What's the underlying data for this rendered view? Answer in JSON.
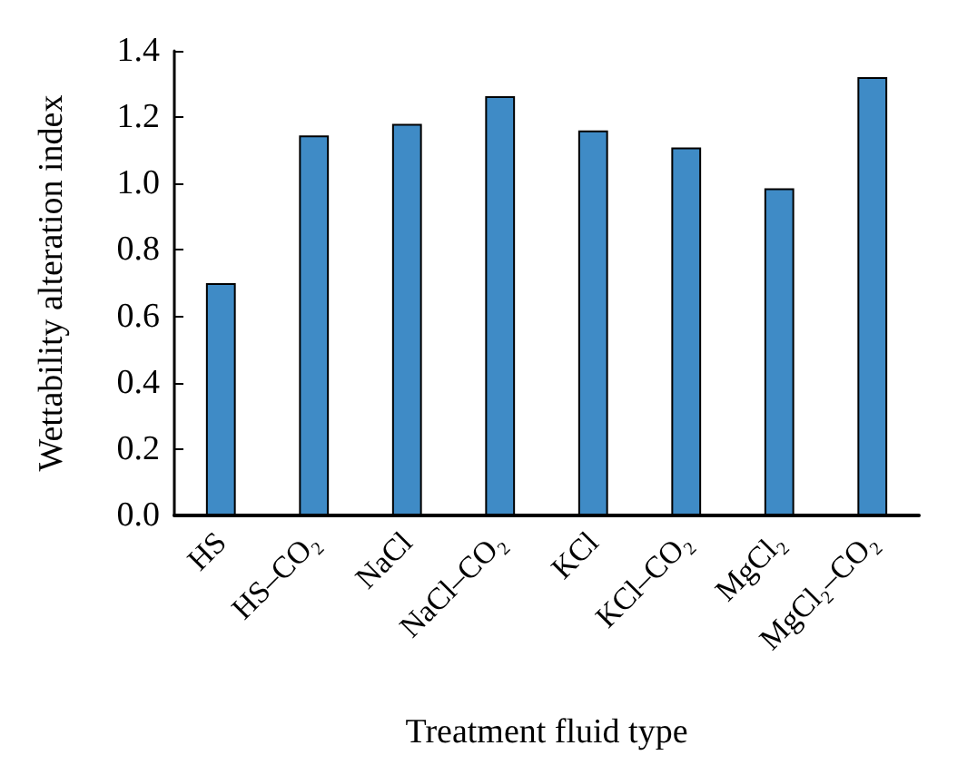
{
  "chart_data": {
    "type": "bar",
    "xlabel": "Treatment fluid type",
    "ylabel": "Wettability alteration index",
    "categories": [
      "HS",
      "HS–CO₂",
      "NaCl",
      "NaCl–CO₂",
      "KCl",
      "KCl–CO₂",
      "MgCl₂",
      "MgCl₂–CO₂"
    ],
    "values": [
      0.7,
      1.145,
      1.18,
      1.263,
      1.16,
      1.109,
      0.986,
      1.321
    ],
    "color": "#3f8bc6",
    "ylim": [
      0,
      1.4
    ],
    "yticks": [
      {
        "value": 0,
        "label": "0.0"
      },
      0.2,
      0.4,
      0.6,
      0.8,
      {
        "value": 1,
        "label": "1.0"
      },
      1.2,
      1.4
    ],
    "grid": false
  }
}
